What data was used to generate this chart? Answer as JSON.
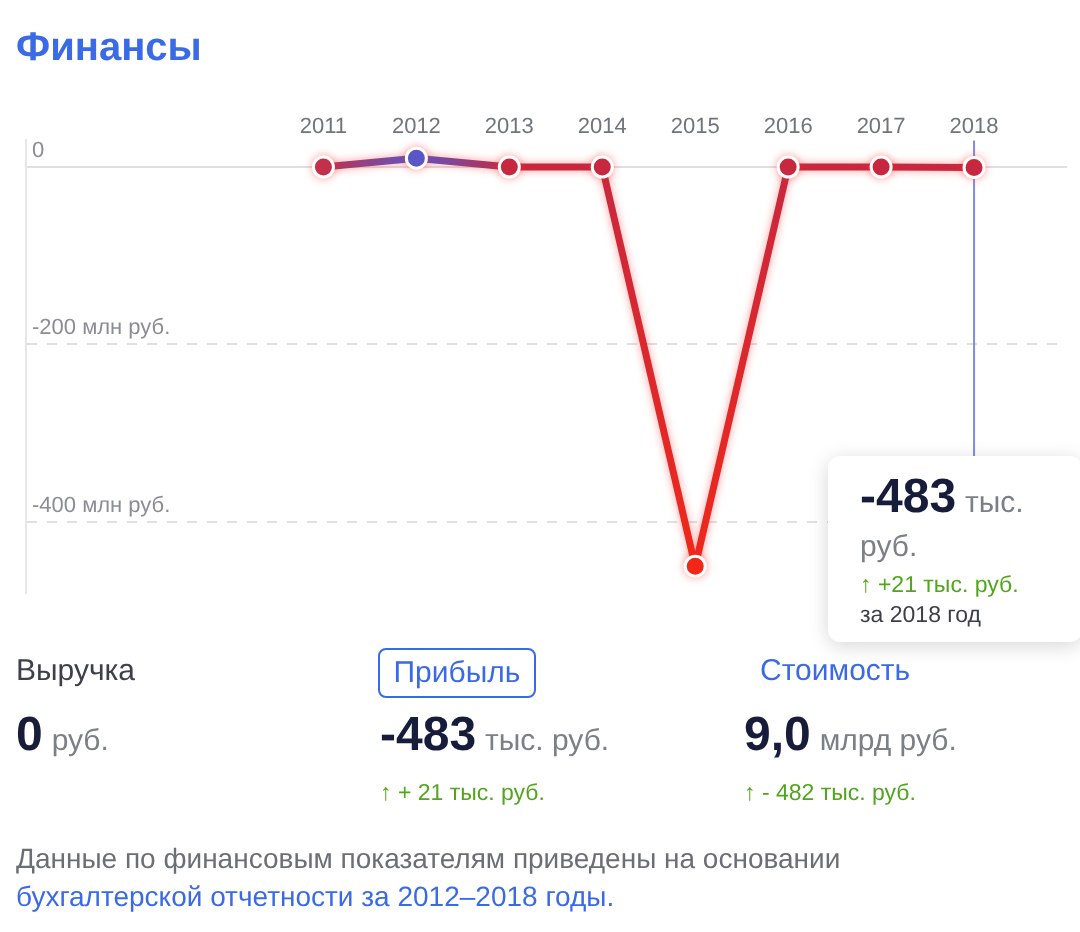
{
  "chart_data": {
    "type": "line",
    "title": "Финансы",
    "x": [
      2011,
      2012,
      2013,
      2014,
      2015,
      2016,
      2017,
      2018
    ],
    "series": [
      {
        "values": [
          0,
          10,
          0,
          0,
          -450,
          0,
          0,
          -0.483
        ],
        "colors": [
          "#c2304c",
          "#5a56c8",
          "#c8283f",
          "#c8283f",
          "#f0281a",
          "#c8283f",
          "#c8283f",
          "#c8283f"
        ]
      }
    ],
    "xlim": [
      2007.8,
      2019.0
    ],
    "xticks": [
      2011,
      2012,
      2013,
      2014,
      2015,
      2016,
      2017,
      2018
    ],
    "ylim": [
      -480,
      30
    ],
    "yticks": [
      0,
      {
        "value": -200,
        "label": "-200 млн руб."
      },
      {
        "value": -400,
        "label": "-400 млн руб."
      }
    ],
    "grid": "y",
    "marker": "circle",
    "line_style": "solid",
    "ref_lines": [
      {
        "axis": "x",
        "value": 2018,
        "color": "#7d8fdc"
      }
    ],
    "annotations": [
      "-483 тыс. руб.",
      "↑ +21 тыс. руб.",
      "за 2018 год",
      "Выручка",
      "0 руб.",
      "Прибыль",
      "-483 тыс. руб.",
      "↑ + 21 тыс. руб.",
      "Стоимость",
      "9,0 млрд руб.",
      "↑ - 482 тыс. руб.",
      "Данные по финансовым показателям приведены на основании",
      "бухгалтерской отчетности за 2012–2018 годы."
    ]
  }
}
